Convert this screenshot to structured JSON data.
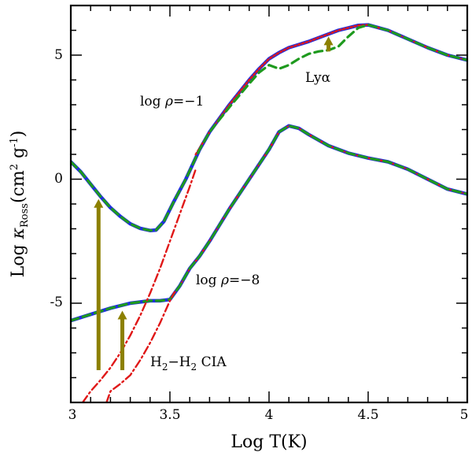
{
  "chart_data": {
    "type": "line",
    "title": "",
    "xlabel": {
      "prefix": "Log T(K)"
    },
    "ylabel": {
      "prefix": "Log ",
      "kappa": "κ",
      "sub": "Ross",
      "units_open": "(cm",
      "sup2": "2",
      "units_mid": " g",
      "supneg1": "-1",
      "units_close": ")"
    },
    "xlim": [
      3,
      5
    ],
    "ylim": [
      -9,
      7
    ],
    "x_ticks": [
      3,
      3.5,
      4,
      4.5,
      5
    ],
    "x_tick_labels": [
      "3",
      "3.5",
      "4",
      "4.5",
      "5"
    ],
    "y_ticks": [
      -5,
      0,
      5
    ],
    "y_tick_labels": [
      "-5",
      "0",
      "5"
    ],
    "annotations": {
      "rho_hi": {
        "pre": "log ",
        "rho": "ρ",
        "post": "=−1"
      },
      "rho_lo": {
        "pre": "log ",
        "rho": "ρ",
        "post": "=−8"
      },
      "lya": {
        "text": "Lyα"
      },
      "cia": {
        "h1": "H",
        "s1": "2",
        "dash": "−H",
        "s2": "2",
        "rest": " CIA"
      }
    },
    "colors": {
      "blue": "#1f2ee0",
      "red": "#e01818",
      "green": "#1e9a1e",
      "olive": "#8c8000"
    },
    "series": [
      {
        "name": "log rho=-1 total (blue)",
        "color": "blue",
        "style": "solid",
        "x": [
          3.0,
          3.05,
          3.1,
          3.15,
          3.2,
          3.25,
          3.3,
          3.35,
          3.4,
          3.43,
          3.47,
          3.52,
          3.58,
          3.65,
          3.7,
          3.8,
          3.9,
          3.95,
          4.0,
          4.05,
          4.1,
          4.2,
          4.3,
          4.35,
          4.4,
          4.45,
          4.5,
          4.6,
          4.7,
          4.8,
          4.9,
          5.0
        ],
        "y": [
          0.7,
          0.3,
          -0.2,
          -0.7,
          -1.15,
          -1.5,
          -1.8,
          -1.98,
          -2.07,
          -2.05,
          -1.7,
          -0.9,
          0.0,
          1.2,
          1.9,
          3.0,
          4.0,
          4.45,
          4.85,
          5.1,
          5.3,
          5.55,
          5.85,
          6.0,
          6.1,
          6.2,
          6.22,
          6.0,
          5.65,
          5.3,
          5.0,
          4.8
        ]
      },
      {
        "name": "log rho=-1 (red dotted)",
        "color": "red",
        "style": "dotted",
        "x": [
          3.63,
          3.7,
          3.8,
          3.9,
          3.95,
          4.0,
          4.05,
          4.1,
          4.2,
          4.3,
          4.35,
          4.4,
          4.45,
          4.5,
          4.6,
          4.7,
          4.8,
          4.9,
          5.0
        ],
        "y": [
          1.0,
          1.9,
          3.0,
          4.0,
          4.45,
          4.85,
          5.1,
          5.3,
          5.55,
          5.85,
          6.0,
          6.1,
          6.2,
          6.22,
          6.0,
          5.65,
          5.3,
          5.0,
          4.8
        ]
      },
      {
        "name": "log rho=-1 (green dashed)",
        "color": "green",
        "style": "dashed",
        "x": [
          3.0,
          3.05,
          3.1,
          3.15,
          3.2,
          3.25,
          3.3,
          3.35,
          3.4,
          3.43,
          3.47,
          3.52,
          3.58,
          3.65,
          3.7,
          3.8,
          3.9,
          3.95,
          4.0,
          4.05,
          4.1,
          4.15,
          4.2,
          4.25,
          4.3,
          4.35,
          4.4,
          4.45,
          4.5,
          4.6,
          4.7,
          4.8,
          4.9,
          5.0
        ],
        "y": [
          0.7,
          0.3,
          -0.2,
          -0.7,
          -1.15,
          -1.5,
          -1.8,
          -1.98,
          -2.07,
          -2.05,
          -1.7,
          -0.9,
          0.0,
          1.2,
          1.9,
          2.9,
          3.85,
          4.3,
          4.6,
          4.45,
          4.6,
          4.85,
          5.05,
          5.15,
          5.2,
          5.35,
          5.75,
          6.1,
          6.22,
          6.0,
          5.65,
          5.3,
          5.0,
          4.8
        ]
      },
      {
        "name": "log rho=-8 total (blue)",
        "color": "blue",
        "style": "solid",
        "x": [
          3.0,
          3.1,
          3.2,
          3.3,
          3.4,
          3.45,
          3.5,
          3.55,
          3.6,
          3.65,
          3.7,
          3.8,
          3.9,
          4.0,
          4.05,
          4.1,
          4.15,
          4.2,
          4.3,
          4.4,
          4.5,
          4.6,
          4.7,
          4.8,
          4.9,
          5.0
        ],
        "y": [
          -5.7,
          -5.45,
          -5.2,
          -5.0,
          -4.9,
          -4.9,
          -4.85,
          -4.3,
          -3.6,
          -3.1,
          -2.5,
          -1.2,
          0.0,
          1.2,
          1.9,
          2.15,
          2.05,
          1.8,
          1.35,
          1.05,
          0.85,
          0.7,
          0.4,
          0.0,
          -0.4,
          -0.6
        ]
      },
      {
        "name": "log rho=-8 (red dotted)",
        "color": "red",
        "style": "dotted",
        "x": [
          3.52,
          3.55,
          3.6,
          3.65,
          3.7,
          3.8,
          3.9,
          4.0,
          4.05,
          4.1,
          4.15,
          4.2,
          4.3,
          4.4,
          4.5,
          4.6,
          4.7,
          4.8,
          4.9,
          5.0
        ],
        "y": [
          -4.6,
          -4.3,
          -3.6,
          -3.1,
          -2.5,
          -1.2,
          0.0,
          1.2,
          1.9,
          2.15,
          2.05,
          1.8,
          1.35,
          1.05,
          0.85,
          0.7,
          0.4,
          0.0,
          -0.4,
          -0.6
        ]
      },
      {
        "name": "log rho=-8 (green dashed)",
        "color": "green",
        "style": "dashed",
        "x": [
          3.0,
          3.1,
          3.2,
          3.3,
          3.4,
          3.45,
          3.5,
          3.55,
          3.6,
          3.65,
          3.7,
          3.8,
          3.9,
          4.0,
          4.05,
          4.1,
          4.15,
          4.2,
          4.3,
          4.4,
          4.5,
          4.6,
          4.7,
          4.8,
          4.9,
          5.0
        ],
        "y": [
          -5.7,
          -5.45,
          -5.2,
          -5.0,
          -4.9,
          -4.9,
          -4.85,
          -4.3,
          -3.6,
          -3.1,
          -2.5,
          -1.2,
          0.0,
          1.2,
          1.9,
          2.15,
          2.05,
          1.8,
          1.35,
          1.05,
          0.85,
          0.7,
          0.4,
          0.0,
          -0.4,
          -0.6
        ]
      },
      {
        "name": "log rho=-1 H2-H2 CIA (red dash-dot)",
        "color": "red",
        "style": "dashdot",
        "x": [
          3.06,
          3.1,
          3.15,
          3.2,
          3.25,
          3.3,
          3.35,
          3.4,
          3.45,
          3.5,
          3.55,
          3.6,
          3.63
        ],
        "y": [
          -9.0,
          -8.55,
          -8.1,
          -7.6,
          -7.0,
          -6.3,
          -5.5,
          -4.6,
          -3.6,
          -2.5,
          -1.4,
          -0.3,
          0.4
        ]
      },
      {
        "name": "log rho=-8 H2-H2 CIA (red dash-dot)",
        "color": "red",
        "style": "dashdot",
        "x": [
          3.18,
          3.2,
          3.25,
          3.3,
          3.35,
          3.4,
          3.45,
          3.5,
          3.52
        ],
        "y": [
          -9.0,
          -8.55,
          -8.25,
          -7.9,
          -7.3,
          -6.6,
          -5.8,
          -4.9,
          -4.6
        ]
      }
    ],
    "arrows": [
      {
        "name": "cia-arrow-hi",
        "color": "olive",
        "x": 3.14,
        "y_from": -7.7,
        "y_to": -0.8
      },
      {
        "name": "cia-arrow-lo",
        "color": "olive",
        "x": 3.26,
        "y_from": -7.7,
        "y_to": -5.3
      },
      {
        "name": "lya-arrow",
        "color": "olive",
        "x": 4.3,
        "y_from": 5.15,
        "y_to": 5.75
      }
    ]
  }
}
